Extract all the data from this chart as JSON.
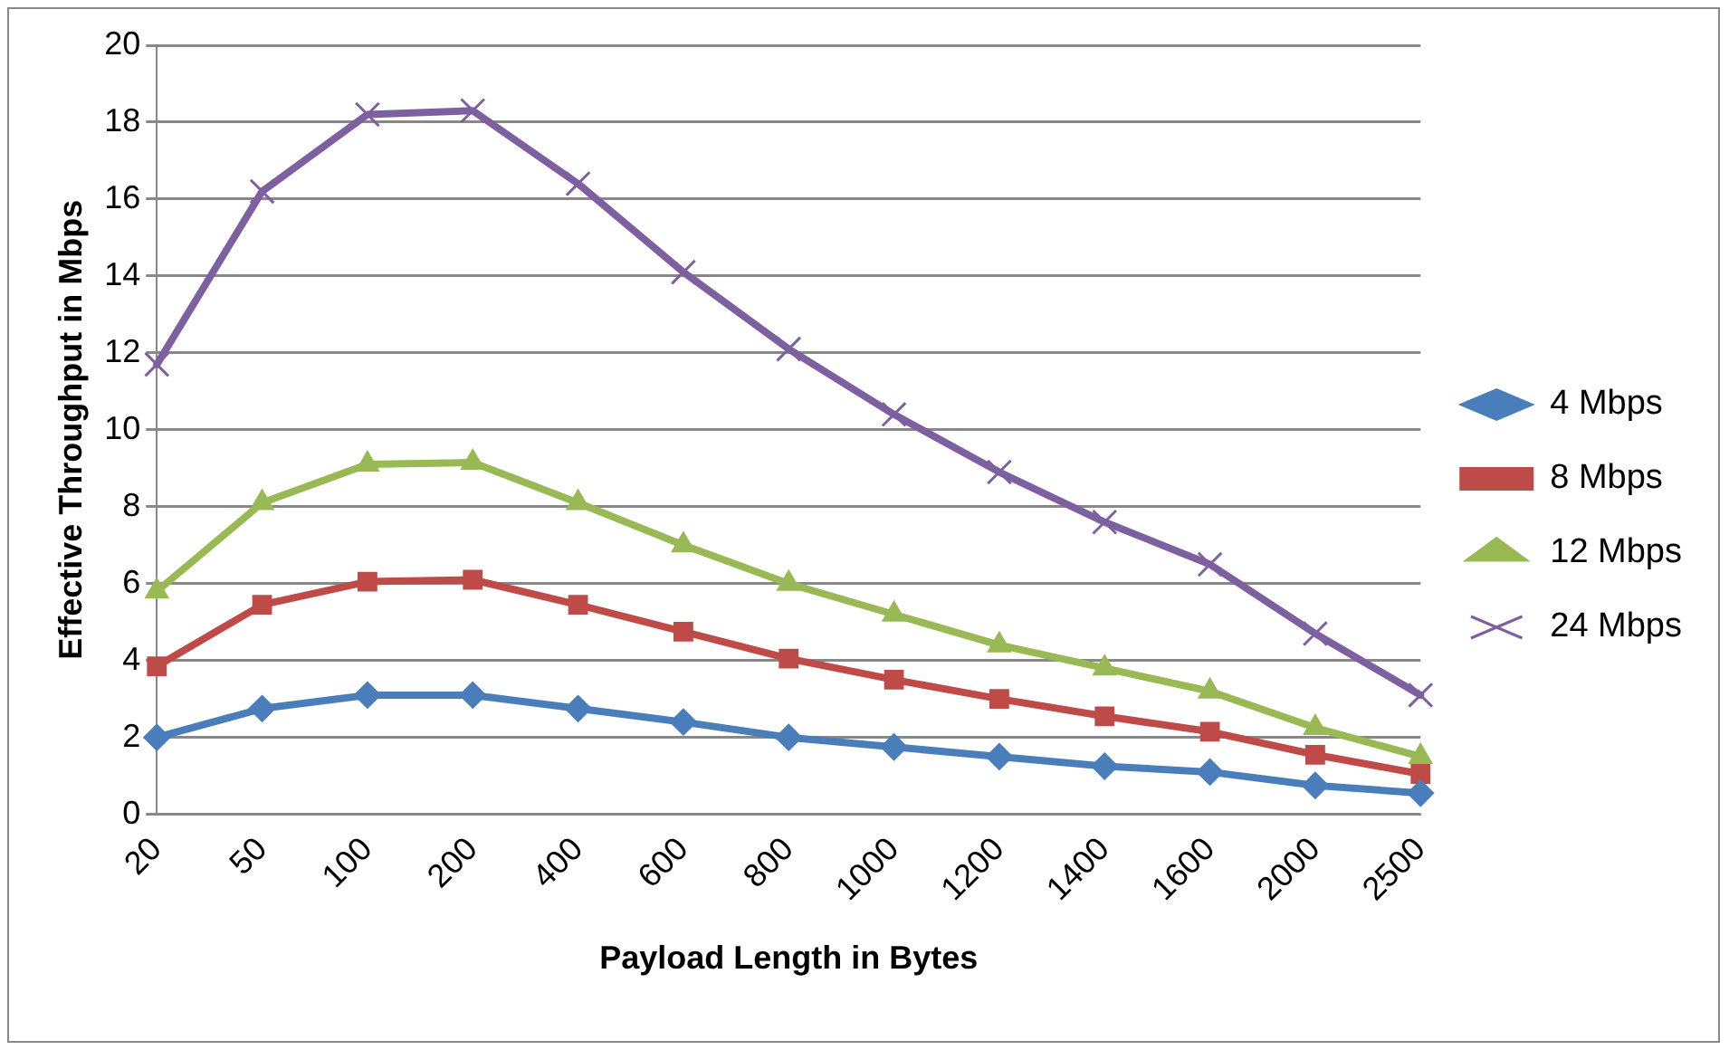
{
  "chart_data": {
    "type": "line",
    "xlabel": "Payload Length in Bytes",
    "ylabel": "Effective Throughput in Mbps",
    "categories": [
      "20",
      "50",
      "100",
      "200",
      "400",
      "600",
      "800",
      "1000",
      "1200",
      "1400",
      "1600",
      "2000",
      "2500"
    ],
    "series": [
      {
        "name": "4 Mbps",
        "color": "#4a7ebb",
        "marker": "diamond",
        "values": [
          2.0,
          2.75,
          3.1,
          3.1,
          2.75,
          2.4,
          2.0,
          1.75,
          1.5,
          1.25,
          1.1,
          0.75,
          0.55
        ]
      },
      {
        "name": "8 Mbps",
        "color": "#be4b48",
        "marker": "square",
        "values": [
          3.85,
          5.45,
          6.05,
          6.1,
          5.45,
          4.75,
          4.05,
          3.5,
          3.0,
          2.55,
          2.15,
          1.55,
          1.05
        ]
      },
      {
        "name": "12 Mbps",
        "color": "#98b954",
        "marker": "triangle",
        "values": [
          5.8,
          8.1,
          9.1,
          9.15,
          8.1,
          7.0,
          6.0,
          5.2,
          4.4,
          3.8,
          3.2,
          2.25,
          1.5
        ]
      },
      {
        "name": "24 Mbps",
        "color": "#7d60a0",
        "marker": "cross",
        "values": [
          11.7,
          16.2,
          18.2,
          18.3,
          16.4,
          14.1,
          12.1,
          10.4,
          8.9,
          7.6,
          6.5,
          4.7,
          3.1
        ]
      }
    ],
    "ylim": [
      0,
      20
    ],
    "yticks": [
      0,
      2,
      4,
      6,
      8,
      10,
      12,
      14,
      16,
      18,
      20
    ],
    "grid": "y",
    "legend": "right",
    "line_style": "solid"
  }
}
